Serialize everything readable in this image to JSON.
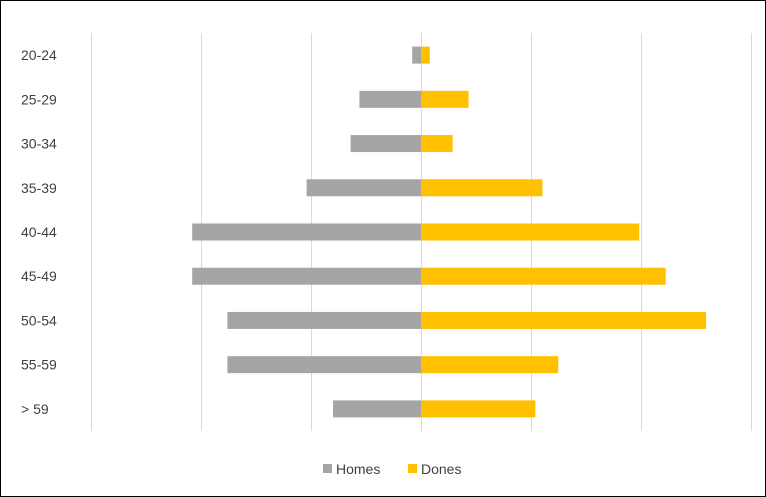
{
  "chart_data": {
    "type": "bar",
    "orientation": "horizontal",
    "layout": "population-pyramid",
    "categories": [
      "20-24",
      "25-29",
      "30-34",
      "35-39",
      "40-44",
      "45-49",
      "50-54",
      "55-59",
      "> 59"
    ],
    "series": [
      {
        "name": "Homes",
        "color": "#a5a5a5",
        "values": [
          0.5,
          3.5,
          4,
          6.5,
          13,
          13,
          11,
          11,
          5
        ]
      },
      {
        "name": "Dones",
        "color": "#ffc000",
        "values": [
          0.5,
          2.7,
          1.8,
          6.9,
          12.4,
          13.9,
          16.2,
          7.8,
          6.5
        ]
      }
    ],
    "xlim": [
      -18.75,
      18.75
    ],
    "gridline_step": 6.25,
    "x_tick_labels_shown": false,
    "grid": true,
    "legend_position": "bottom"
  }
}
